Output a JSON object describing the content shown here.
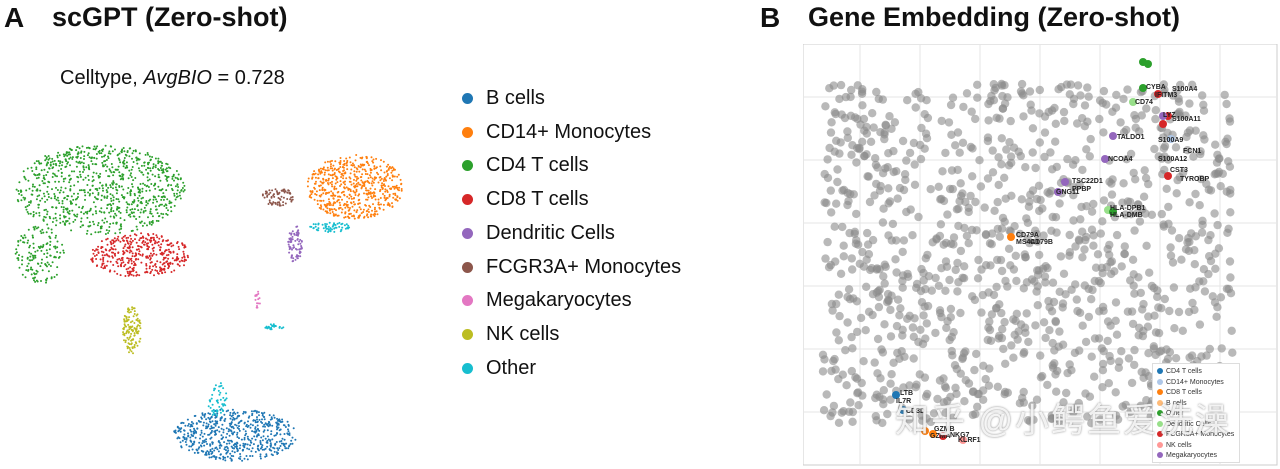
{
  "panel_a": {
    "letter": "A",
    "title": "scGPT (Zero-shot)",
    "subtitle_prefix": "Celltype, ",
    "subtitle_metric": "AvgBIO",
    "subtitle_value": " = 0.728",
    "legend": [
      {
        "label": "B cells",
        "color": "#1f77b4"
      },
      {
        "label": "CD14+ Monocytes",
        "color": "#ff7f0e"
      },
      {
        "label": "CD4 T cells",
        "color": "#2ca02c"
      },
      {
        "label": "CD8 T cells",
        "color": "#d62728"
      },
      {
        "label": "Dendritic Cells",
        "color": "#9467bd"
      },
      {
        "label": "FCGR3A+ Monocytes",
        "color": "#8c564b"
      },
      {
        "label": "Megakaryocytes",
        "color": "#e377c2"
      },
      {
        "label": "NK cells",
        "color": "#bcbd22"
      },
      {
        "label": "Other",
        "color": "#17becf"
      }
    ]
  },
  "panel_b": {
    "letter": "B",
    "title": "Gene Embedding (Zero-shot)",
    "legend": [
      {
        "label": "CD4 T cells",
        "color": "#1f77b4"
      },
      {
        "label": "CD14+ Monocytes",
        "color": "#aec7e8"
      },
      {
        "label": "CD8 T cells",
        "color": "#ff7f0e"
      },
      {
        "label": "B cells",
        "color": "#ffbb78"
      },
      {
        "label": "Other",
        "color": "#2ca02c"
      },
      {
        "label": "Dendritic Cells",
        "color": "#98df8a"
      },
      {
        "label": "FCGR3A+ Monocytes",
        "color": "#d62728"
      },
      {
        "label": "NK cells",
        "color": "#ff9896"
      },
      {
        "label": "Megakaryocytes",
        "color": "#9467bd"
      }
    ],
    "gene_labels": [
      "HLA-DPB1",
      "HLA-DMB",
      "CD74",
      "TALDO1",
      "NCOA4",
      "TSC22D1",
      "PPBP",
      "GNG11",
      "S100A9",
      "FCN1",
      "S100A12",
      "LYZ",
      "CST3",
      "IFITM3",
      "CD79A",
      "MS4A1",
      "CD79B",
      "LTB",
      "IL7R",
      "CD3D",
      "GZMB",
      "NKG7",
      "KLRF1",
      "GZMA",
      "TYROBP",
      "CYBA",
      "S100A4",
      "S100A11"
    ]
  },
  "watermark": "知乎 @小鳄鱼爱洗澡"
}
